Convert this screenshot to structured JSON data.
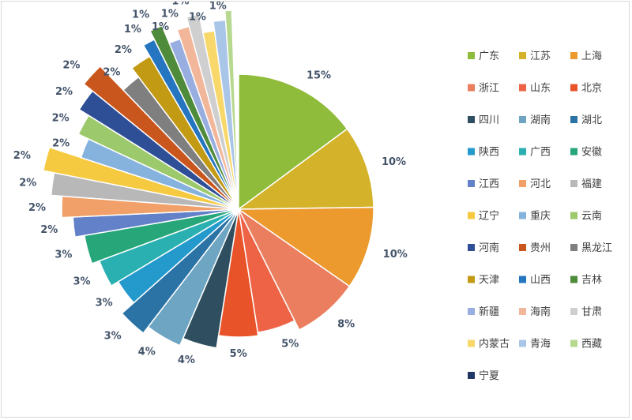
{
  "chart_data": {
    "type": "pie",
    "title": "",
    "legend_position": "right",
    "slices": [
      {
        "label": "广东",
        "value": 15,
        "pct_label": "15%",
        "color": "#8fbc3a"
      },
      {
        "label": "江苏",
        "value": 10,
        "pct_label": "10%",
        "color": "#d4b32a"
      },
      {
        "label": "上海",
        "value": 10,
        "pct_label": "10%",
        "color": "#ec9a2e"
      },
      {
        "label": "浙江",
        "value": 8,
        "pct_label": "8%",
        "color": "#ea7e5e"
      },
      {
        "label": "山东",
        "value": 5,
        "pct_label": "5%",
        "color": "#ee6346"
      },
      {
        "label": "北京",
        "value": 5,
        "pct_label": "5%",
        "color": "#e9532a"
      },
      {
        "label": "四川",
        "value": 4,
        "pct_label": "4%",
        "color": "#2f4f60"
      },
      {
        "label": "湖南",
        "value": 4,
        "pct_label": "4%",
        "color": "#6ea5c2"
      },
      {
        "label": "湖北",
        "value": 3,
        "pct_label": "3%",
        "color": "#2b73a5"
      },
      {
        "label": "陕西",
        "value": 3,
        "pct_label": "3%",
        "color": "#2399cc"
      },
      {
        "label": "广西",
        "value": 3,
        "pct_label": "3%",
        "color": "#2ab0b0"
      },
      {
        "label": "安徽",
        "value": 3,
        "pct_label": "3%",
        "color": "#27a67a"
      },
      {
        "label": "江西",
        "value": 2,
        "pct_label": "2%",
        "color": "#6281c9"
      },
      {
        "label": "河北",
        "value": 2,
        "pct_label": "2%",
        "color": "#f0a068"
      },
      {
        "label": "福建",
        "value": 2,
        "pct_label": "2%",
        "color": "#b8b8b8"
      },
      {
        "label": "辽宁",
        "value": 2,
        "pct_label": "2%",
        "color": "#f6ca40"
      },
      {
        "label": "重庆",
        "value": 2,
        "pct_label": "2%",
        "color": "#86b3de"
      },
      {
        "label": "云南",
        "value": 2,
        "pct_label": "2%",
        "color": "#9cc96b"
      },
      {
        "label": "河南",
        "value": 2,
        "pct_label": "2%",
        "color": "#2e4e96"
      },
      {
        "label": "贵州",
        "value": 2,
        "pct_label": "2%",
        "color": "#c9561c"
      },
      {
        "label": "黑龙江",
        "value": 2,
        "pct_label": "2%",
        "color": "#7f7f7f"
      },
      {
        "label": "天津",
        "value": 2,
        "pct_label": "2%",
        "color": "#c39a14"
      },
      {
        "label": "山西",
        "value": 1,
        "pct_label": "1%",
        "color": "#2575c1"
      },
      {
        "label": "吉林",
        "value": 1,
        "pct_label": "1%",
        "color": "#4e8b3a"
      },
      {
        "label": "新疆",
        "value": 1,
        "pct_label": "1%",
        "color": "#98aee0"
      },
      {
        "label": "海南",
        "value": 1,
        "pct_label": "1%",
        "color": "#f2b79a"
      },
      {
        "label": "甘肃",
        "value": 1,
        "pct_label": "1%",
        "color": "#cfcfcf"
      },
      {
        "label": "内蒙古",
        "value": 1,
        "pct_label": "1%",
        "color": "#f8d86a"
      },
      {
        "label": "青海",
        "value": 1,
        "pct_label": "1%",
        "color": "#a9c5e8"
      },
      {
        "label": "西藏",
        "value": 0,
        "pct_label": "0%",
        "color": "#b7d88f"
      },
      {
        "label": "宁夏",
        "value": 0,
        "pct_label": "",
        "color": "#1f3864"
      }
    ]
  }
}
